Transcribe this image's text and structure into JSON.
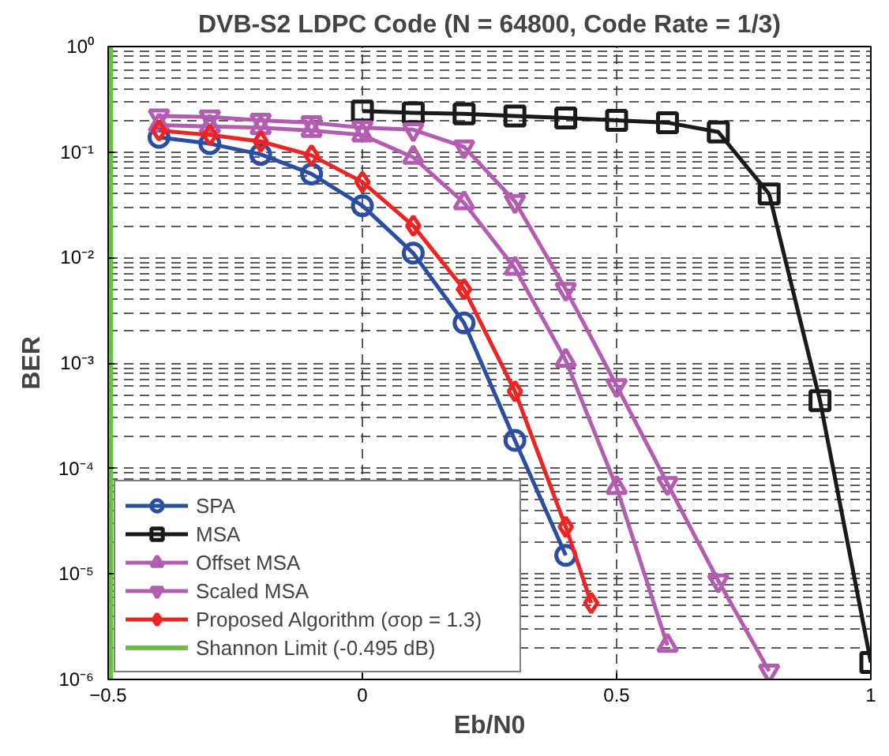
{
  "chart_data": {
    "type": "line",
    "title": "DVB-S2 LDPC Code (N = 64800, Code Rate = 1/3)",
    "xlabel": "Eb/N0",
    "ylabel": "BER",
    "log": "y",
    "grid": true,
    "legend": "bottom left",
    "line_style": "solid",
    "xlim": [
      -0.5,
      1
    ],
    "xticks": [
      -0.5,
      0,
      0.5,
      1
    ],
    "ylim": [
      1e-06,
      1
    ],
    "yticks": [
      {
        "value": 1e-06,
        "label": "10⁻⁶"
      },
      {
        "value": 1e-05,
        "label": "10⁻⁵"
      },
      {
        "value": 0.0001,
        "label": "10⁻⁴"
      },
      {
        "value": 0.001,
        "label": "10⁻³"
      },
      {
        "value": 0.01,
        "label": "10⁻²"
      },
      {
        "value": 0.1,
        "label": "10⁻¹"
      },
      {
        "value": 1,
        "label": "10⁰"
      }
    ],
    "series": [
      {
        "name": "SPA",
        "color": "#2b4ea2",
        "marker": "circle",
        "x": [
          -0.4,
          -0.3,
          -0.2,
          -0.1,
          0,
          0.1,
          0.2,
          0.3,
          0.4
        ],
        "values": [
          0.138,
          0.12,
          0.095,
          0.062,
          0.031,
          0.011,
          0.0024,
          0.000185,
          1.5e-05
        ]
      },
      {
        "name": "MSA",
        "color": "#1a1a1a",
        "marker": "square",
        "x": [
          0,
          0.1,
          0.2,
          0.3,
          0.4,
          0.5,
          0.6,
          0.7,
          0.8,
          0.9,
          1
        ],
        "values": [
          0.245,
          0.235,
          0.23,
          0.22,
          0.21,
          0.2,
          0.19,
          0.155,
          0.04,
          0.00044,
          1.45e-06
        ]
      },
      {
        "name": "Offset MSA",
        "color": "#b35db0",
        "marker": "triangle",
        "x": [
          -0.4,
          -0.3,
          -0.2,
          -0.1,
          0,
          0.1,
          0.2,
          0.3,
          0.4,
          0.5,
          0.6
        ],
        "values": [
          0.18,
          0.175,
          0.17,
          0.16,
          0.145,
          0.089,
          0.033,
          0.0079,
          0.00106,
          6.6e-05,
          2.1e-06
        ]
      },
      {
        "name": "Scaled MSA",
        "color": "#b35db0",
        "marker": "triangle_down",
        "x": [
          -0.4,
          -0.3,
          -0.2,
          -0.1,
          0,
          0.1,
          0.2,
          0.3,
          0.4,
          0.5,
          0.6,
          0.7,
          0.8
        ],
        "values": [
          0.22,
          0.215,
          0.2,
          0.19,
          0.17,
          0.163,
          0.112,
          0.034,
          0.005,
          0.00061,
          7.2e-05,
          8.6e-06,
          1.2e-06
        ]
      },
      {
        "name": "Proposed Algorithm (σop = 1.3)",
        "color": "#ee2424",
        "marker": "diamond",
        "x": [
          -0.4,
          -0.3,
          -0.2,
          -0.1,
          0,
          0.1,
          0.2,
          0.3,
          0.4,
          0.45
        ],
        "values": [
          0.16,
          0.145,
          0.126,
          0.093,
          0.052,
          0.02,
          0.005,
          0.00054,
          2.8e-05,
          5.3e-06
        ]
      }
    ],
    "ref_lines": [
      {
        "axis": "x",
        "value": -0.495,
        "label": "Shannon Limit (-0.495 dB)",
        "color": "#6cbf45",
        "line_style": "solid"
      }
    ]
  }
}
